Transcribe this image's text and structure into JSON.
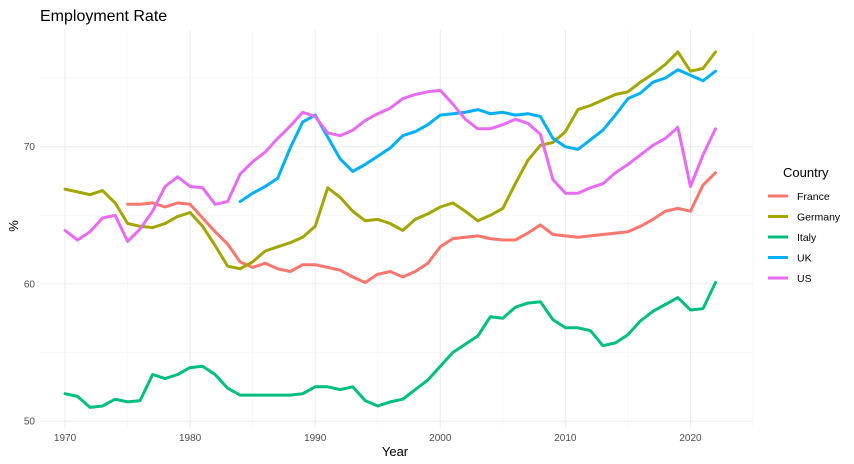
{
  "chart_data": {
    "type": "line",
    "title": "Employment Rate",
    "xlabel": "Year",
    "ylabel": "%",
    "xlim": [
      1968,
      2025
    ],
    "ylim": [
      49.5,
      78.5
    ],
    "x_ticks": [
      1970,
      1980,
      1990,
      2000,
      2010,
      2020
    ],
    "y_ticks": [
      50,
      60,
      70
    ],
    "grid": true,
    "legend": {
      "title": "Country",
      "position": "right"
    },
    "series": [
      {
        "name": "France",
        "color": "#F8766D",
        "x": [
          1975,
          1976,
          1977,
          1978,
          1979,
          1980,
          1981,
          1982,
          1983,
          1984,
          1985,
          1986,
          1987,
          1988,
          1989,
          1990,
          1991,
          1992,
          1993,
          1994,
          1995,
          1996,
          1997,
          1998,
          1999,
          2000,
          2001,
          2002,
          2003,
          2004,
          2005,
          2006,
          2007,
          2008,
          2009,
          2010,
          2011,
          2012,
          2013,
          2014,
          2015,
          2016,
          2017,
          2018,
          2019,
          2020,
          2021,
          2022
        ],
        "y": [
          65.8,
          65.8,
          65.9,
          65.6,
          65.9,
          65.8,
          64.8,
          63.8,
          62.9,
          61.6,
          61.2,
          61.5,
          61.1,
          60.9,
          61.4,
          61.4,
          61.2,
          61.0,
          60.5,
          60.1,
          60.7,
          60.9,
          60.5,
          60.9,
          61.5,
          62.7,
          63.3,
          63.4,
          63.5,
          63.3,
          63.2,
          63.2,
          63.7,
          64.3,
          63.6,
          63.5,
          63.4,
          63.5,
          63.6,
          63.7,
          63.8,
          64.2,
          64.7,
          65.3,
          65.5,
          65.3,
          67.2,
          68.1
        ]
      },
      {
        "name": "Germany",
        "color": "#A3A500",
        "x": [
          1970,
          1971,
          1972,
          1973,
          1974,
          1975,
          1976,
          1977,
          1978,
          1979,
          1980,
          1981,
          1982,
          1983,
          1984,
          1985,
          1986,
          1987,
          1988,
          1989,
          1990,
          1991,
          1992,
          1993,
          1994,
          1995,
          1996,
          1997,
          1998,
          1999,
          2000,
          2001,
          2002,
          2003,
          2004,
          2005,
          2006,
          2007,
          2008,
          2009,
          2010,
          2011,
          2012,
          2013,
          2014,
          2015,
          2016,
          2017,
          2018,
          2019,
          2020,
          2021,
          2022
        ],
        "y": [
          66.9,
          66.7,
          66.5,
          66.8,
          65.9,
          64.4,
          64.2,
          64.1,
          64.4,
          64.9,
          65.2,
          64.2,
          62.8,
          61.3,
          61.1,
          61.6,
          62.4,
          62.7,
          63.0,
          63.4,
          64.2,
          67.0,
          66.3,
          65.3,
          64.6,
          64.7,
          64.4,
          63.9,
          64.7,
          65.1,
          65.6,
          65.9,
          65.3,
          64.6,
          65.0,
          65.5,
          67.3,
          69.0,
          70.1,
          70.3,
          71.1,
          72.7,
          73.0,
          73.4,
          73.8,
          74.0,
          74.7,
          75.3,
          76.0,
          76.9,
          75.5,
          75.7,
          76.9
        ]
      },
      {
        "name": "Italy",
        "color": "#00BF7D",
        "x": [
          1970,
          1971,
          1972,
          1973,
          1974,
          1975,
          1976,
          1977,
          1978,
          1979,
          1980,
          1981,
          1982,
          1983,
          1984,
          1985,
          1986,
          1987,
          1988,
          1989,
          1990,
          1991,
          1992,
          1993,
          1994,
          1995,
          1996,
          1997,
          1998,
          1999,
          2000,
          2001,
          2002,
          2003,
          2004,
          2005,
          2006,
          2007,
          2008,
          2009,
          2010,
          2011,
          2012,
          2013,
          2014,
          2015,
          2016,
          2017,
          2018,
          2019,
          2020,
          2021,
          2022
        ],
        "y": [
          52.0,
          51.8,
          51.0,
          51.1,
          51.6,
          51.4,
          51.5,
          53.4,
          53.1,
          53.4,
          53.9,
          54.0,
          53.4,
          52.4,
          51.9,
          51.9,
          51.9,
          51.9,
          51.9,
          52.0,
          52.5,
          52.5,
          52.3,
          52.5,
          51.5,
          51.1,
          51.4,
          51.6,
          52.3,
          53.0,
          54.0,
          55.0,
          55.6,
          56.2,
          57.6,
          57.5,
          58.3,
          58.6,
          58.7,
          57.4,
          56.8,
          56.8,
          56.6,
          55.5,
          55.7,
          56.3,
          57.3,
          58.0,
          58.5,
          59.0,
          58.1,
          58.2,
          60.1
        ]
      },
      {
        "name": "UK",
        "color": "#00B0F6",
        "x": [
          1984,
          1985,
          1986,
          1987,
          1988,
          1989,
          1990,
          1991,
          1992,
          1993,
          1994,
          1995,
          1996,
          1997,
          1998,
          1999,
          2000,
          2001,
          2002,
          2003,
          2004,
          2005,
          2006,
          2007,
          2008,
          2009,
          2010,
          2011,
          2012,
          2013,
          2014,
          2015,
          2016,
          2017,
          2018,
          2019,
          2020,
          2021,
          2022
        ],
        "y": [
          66.0,
          66.6,
          67.1,
          67.7,
          69.9,
          71.8,
          72.3,
          70.7,
          69.1,
          68.2,
          68.7,
          69.3,
          69.9,
          70.8,
          71.1,
          71.6,
          72.3,
          72.4,
          72.5,
          72.7,
          72.4,
          72.5,
          72.3,
          72.4,
          72.2,
          70.6,
          70.0,
          69.8,
          70.5,
          71.2,
          72.3,
          73.5,
          73.9,
          74.7,
          75.0,
          75.6,
          75.2,
          74.8,
          75.5
        ]
      },
      {
        "name": "US",
        "color": "#E76BF3",
        "x": [
          1970,
          1971,
          1972,
          1973,
          1974,
          1975,
          1976,
          1977,
          1978,
          1979,
          1980,
          1981,
          1982,
          1983,
          1984,
          1985,
          1986,
          1987,
          1988,
          1989,
          1990,
          1991,
          1992,
          1993,
          1994,
          1995,
          1996,
          1997,
          1998,
          1999,
          2000,
          2001,
          2002,
          2003,
          2004,
          2005,
          2006,
          2007,
          2008,
          2009,
          2010,
          2011,
          2012,
          2013,
          2014,
          2015,
          2016,
          2017,
          2018,
          2019,
          2020,
          2021,
          2022
        ],
        "y": [
          63.9,
          63.2,
          63.8,
          64.8,
          65.0,
          63.1,
          64.0,
          65.3,
          67.1,
          67.8,
          67.1,
          67.0,
          65.8,
          66.0,
          68.0,
          68.9,
          69.6,
          70.6,
          71.5,
          72.5,
          72.2,
          71.0,
          70.8,
          71.2,
          71.9,
          72.4,
          72.8,
          73.5,
          73.8,
          74.0,
          74.1,
          73.1,
          72.0,
          71.3,
          71.3,
          71.6,
          72.0,
          71.7,
          70.9,
          67.6,
          66.6,
          66.6,
          67.0,
          67.3,
          68.1,
          68.7,
          69.4,
          70.1,
          70.6,
          71.4,
          67.1,
          69.4,
          71.3
        ]
      }
    ]
  }
}
